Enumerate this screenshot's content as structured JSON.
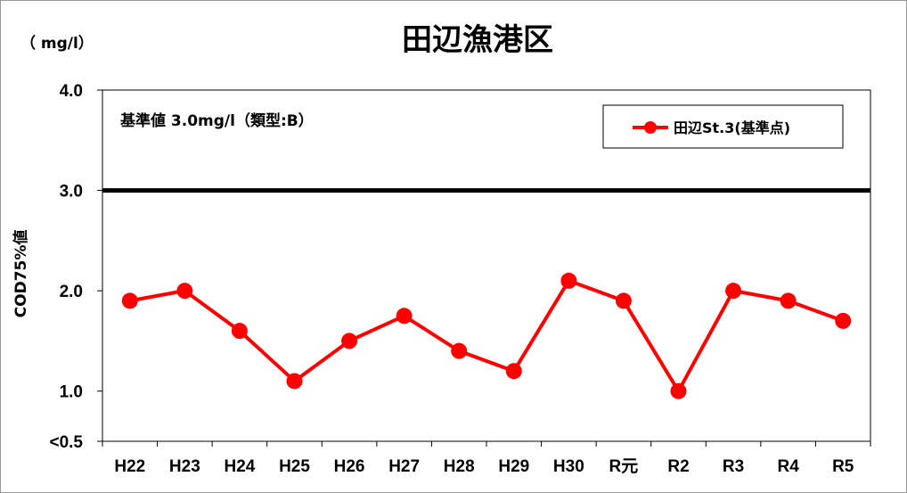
{
  "chart_data": {
    "type": "line",
    "title": "田辺漁港区",
    "unit": "（ mg/l）",
    "ylabel": "COD75%値",
    "standard_note": "基準値 3.0mg/l（類型:B）",
    "standard_value": 3.0,
    "ylim": [
      0.5,
      4.0
    ],
    "y_ticks": [
      {
        "value": 4.0,
        "label": "4.0"
      },
      {
        "value": 3.0,
        "label": "3.0"
      },
      {
        "value": 2.0,
        "label": "2.0"
      },
      {
        "value": 1.0,
        "label": "1.0"
      },
      {
        "value": 0.5,
        "label": "<0.5"
      }
    ],
    "categories": [
      "H22",
      "H23",
      "H24",
      "H25",
      "H26",
      "H27",
      "H28",
      "H29",
      "H30",
      "R元",
      "R2",
      "R3",
      "R4",
      "R5"
    ],
    "series": [
      {
        "name": "田辺St.3(基準点)",
        "color": "#ff0000",
        "values": [
          1.9,
          2.0,
          1.6,
          1.1,
          1.5,
          1.75,
          1.4,
          1.2,
          2.1,
          1.9,
          1.0,
          2.0,
          1.9,
          1.7
        ]
      }
    ],
    "grid": false,
    "legend_position": "top-right"
  },
  "colors": {
    "line": "#ff0000",
    "standard_line": "#000000"
  }
}
